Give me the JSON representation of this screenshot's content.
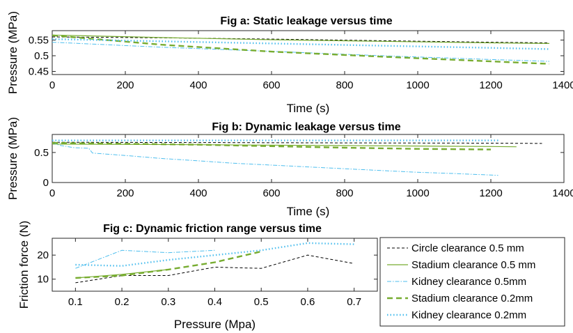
{
  "chart_data": [
    {
      "id": "a",
      "type": "line",
      "title": "Fig a: Static leakage versus time",
      "xlabel": "Time (s)",
      "ylabel": "Pressure (MPa)",
      "xlim": [
        0,
        1400
      ],
      "ylim": [
        0.44,
        0.58
      ],
      "xticks": [
        0,
        200,
        400,
        600,
        800,
        1000,
        1200,
        1400
      ],
      "yticks": [
        0.45,
        0.5,
        0.55
      ],
      "ytick_labels": [
        "0.45",
        "0.5",
        "0.55"
      ],
      "grid": false,
      "series": [
        {
          "name": "Circle clearance 0.5 mm",
          "x": [
            0,
            300,
            600,
            900,
            1200,
            1360
          ],
          "y": [
            0.56,
            0.557,
            0.553,
            0.548,
            0.543,
            0.541
          ]
        },
        {
          "name": "Stadium clearance 0.5 mm",
          "x": [
            0,
            300,
            600,
            900,
            1200,
            1360
          ],
          "y": [
            0.566,
            0.558,
            0.551,
            0.546,
            0.541,
            0.539
          ]
        },
        {
          "name": "Kidney clearance 0.5mm",
          "x": [
            0,
            300,
            600,
            900,
            1200,
            1360
          ],
          "y": [
            0.543,
            0.527,
            0.514,
            0.5,
            0.488,
            0.482
          ]
        },
        {
          "name": "Stadium clearance 0.2mm",
          "x": [
            0,
            300,
            600,
            900,
            1200,
            1360
          ],
          "y": [
            0.565,
            0.535,
            0.513,
            0.497,
            0.482,
            0.474
          ]
        },
        {
          "name": "Kidney clearance 0.2mm",
          "x": [
            0,
            300,
            600,
            900,
            1200,
            1360
          ],
          "y": [
            0.553,
            0.546,
            0.539,
            0.532,
            0.525,
            0.521
          ]
        }
      ]
    },
    {
      "id": "b",
      "type": "line",
      "title": "Fig b: Dynamic leakage versus time",
      "xlabel": "Time (s)",
      "ylabel": "Pressure (MPa)",
      "xlim": [
        0,
        1400
      ],
      "ylim": [
        0,
        0.8
      ],
      "xticks": [
        0,
        200,
        400,
        600,
        800,
        1000,
        1200,
        1400
      ],
      "yticks": [
        0,
        0.5
      ],
      "ytick_labels": [
        "0",
        "0.5"
      ],
      "grid": false,
      "series": [
        {
          "name": "Circle clearance 0.5 mm",
          "x": [
            0,
            400,
            800,
            1200,
            1340
          ],
          "y": [
            0.67,
            0.665,
            0.66,
            0.655,
            0.65
          ]
        },
        {
          "name": "Stadium clearance 0.5 mm",
          "x": [
            0,
            400,
            800,
            1200,
            1270
          ],
          "y": [
            0.64,
            0.63,
            0.615,
            0.6,
            0.595
          ]
        },
        {
          "name": "Kidney clearance 0.5mm",
          "x": [
            0,
            20,
            40,
            60,
            100,
            110,
            200,
            300,
            400,
            500,
            600,
            700,
            800,
            900,
            1000,
            1100,
            1220
          ],
          "y": [
            0.66,
            0.62,
            0.6,
            0.58,
            0.57,
            0.49,
            0.45,
            0.4,
            0.36,
            0.32,
            0.29,
            0.26,
            0.23,
            0.2,
            0.17,
            0.15,
            0.12
          ]
        },
        {
          "name": "Stadium clearance 0.2mm",
          "x": [
            0,
            400,
            800,
            1000,
            1200
          ],
          "y": [
            0.66,
            0.63,
            0.58,
            0.56,
            0.55
          ]
        },
        {
          "name": "Kidney clearance 0.2mm",
          "x": [
            0,
            400,
            800,
            1220
          ],
          "y": [
            0.7,
            0.7,
            0.7,
            0.7
          ]
        }
      ]
    },
    {
      "id": "c",
      "type": "line",
      "title": "Fig c: Dynamic friction range versus time",
      "xlabel": "Pressure (Mpa)",
      "ylabel": "Friction force (N)",
      "xlim": [
        0.05,
        0.75
      ],
      "ylim": [
        5,
        27
      ],
      "xticks": [
        0.1,
        0.2,
        0.3,
        0.4,
        0.5,
        0.6,
        0.7
      ],
      "xtick_labels": [
        "0.1",
        "0.2",
        "0.3",
        "0.4",
        "0.5",
        "0.6",
        "0.7"
      ],
      "yticks": [
        10,
        20
      ],
      "ytick_labels": [
        "10",
        "20"
      ],
      "grid": false,
      "legend_position": "right",
      "series": [
        {
          "name": "Circle clearance 0.5 mm",
          "x": [
            0.1,
            0.2,
            0.3,
            0.4,
            0.5,
            0.6,
            0.7
          ],
          "y": [
            8.5,
            11.5,
            11.5,
            15,
            14.5,
            20,
            16.5
          ]
        },
        {
          "name": "Stadium clearance 0.5 mm",
          "x": [
            0.1,
            0.2,
            0.3
          ],
          "y": [
            10.5,
            12,
            14
          ]
        },
        {
          "name": "Kidney clearance 0.5mm",
          "x": [
            0.1,
            0.2,
            0.3,
            0.4
          ],
          "y": [
            14.5,
            22,
            21,
            22
          ]
        },
        {
          "name": "Stadium clearance 0.2mm",
          "x": [
            0.1,
            0.2,
            0.3,
            0.4,
            0.5
          ],
          "y": [
            10.5,
            11.5,
            14,
            17,
            21.5
          ]
        },
        {
          "name": "Kidney clearance 0.2mm",
          "x": [
            0.1,
            0.2,
            0.3,
            0.4,
            0.5,
            0.6,
            0.7
          ],
          "y": [
            16,
            15.5,
            18,
            20,
            22,
            25,
            24.5
          ]
        }
      ]
    }
  ],
  "legend": {
    "entries": [
      {
        "label": "Circle clearance 0.5 mm",
        "color": "#000000",
        "style": "dashed"
      },
      {
        "label": "Stadium clearance 0.5 mm",
        "color": "#77AC30",
        "style": "solid"
      },
      {
        "label": "Kidney clearance 0.5mm",
        "color": "#4DBEEE",
        "style": "dashdot"
      },
      {
        "label": "Stadium clearance 0.2mm",
        "color": "#77AC30",
        "style": "bold-dashed"
      },
      {
        "label": "Kidney clearance 0.2mm",
        "color": "#4DBEEE",
        "style": "bold-dotted"
      }
    ]
  }
}
